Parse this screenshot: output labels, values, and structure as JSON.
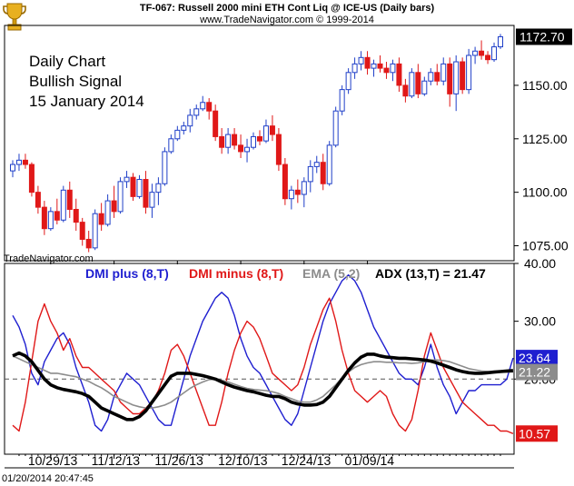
{
  "header": {
    "line1": "TF-067:  Russell 2000 mini ETH Cont Liq @ ICE-US  (Daily bars)",
    "line2": "www.TradeNavigator.com © 1999-2014"
  },
  "annotation": [
    "Daily Chart",
    "Bullish Signal",
    "15 January 2014"
  ],
  "watermark": "TradeNavigator.com",
  "footer_timestamp": "01/20/2014 20:47:45",
  "logo_icon": "trophy-icon",
  "colors": {
    "up_candle": "#1f3fc8",
    "down_candle": "#e01818",
    "dmi_plus": "#1f1fd0",
    "dmi_minus": "#e01818",
    "ema": "#8c8c8c",
    "adx": "#000000"
  },
  "chart_data": [
    {
      "type": "candlestick",
      "y_ticks": [
        "1075.00",
        "1100.00",
        "1125.00",
        "1150.00"
      ],
      "ylim": [
        1068,
        1178
      ],
      "x_ticks": [
        "10/29/13",
        "11/12/13",
        "11/26/13",
        "12/10/13",
        "12/24/13",
        "01/09/14"
      ],
      "last_price_label": "1172.70",
      "candles": [
        [
          1110,
          1115,
          1107,
          1113
        ],
        [
          1113,
          1118,
          1110,
          1115
        ],
        [
          1115,
          1118,
          1111,
          1113
        ],
        [
          1113,
          1114,
          1098,
          1100
        ],
        [
          1100,
          1103,
          1090,
          1093
        ],
        [
          1093,
          1096,
          1080,
          1083
        ],
        [
          1083,
          1093,
          1082,
          1091
        ],
        [
          1091,
          1097,
          1085,
          1087
        ],
        [
          1087,
          1103,
          1086,
          1101
        ],
        [
          1101,
          1105,
          1088,
          1092
        ],
        [
          1092,
          1097,
          1082,
          1086
        ],
        [
          1086,
          1088,
          1075,
          1078
        ],
        [
          1078,
          1082,
          1072,
          1074
        ],
        [
          1074,
          1092,
          1073,
          1090
        ],
        [
          1090,
          1095,
          1082,
          1085
        ],
        [
          1085,
          1099,
          1084,
          1096
        ],
        [
          1096,
          1103,
          1088,
          1091
        ],
        [
          1091,
          1107,
          1090,
          1105
        ],
        [
          1105,
          1110,
          1102,
          1107
        ],
        [
          1107,
          1109,
          1096,
          1098
        ],
        [
          1098,
          1108,
          1097,
          1106
        ],
        [
          1106,
          1110,
          1090,
          1093
        ],
        [
          1093,
          1104,
          1088,
          1100
        ],
        [
          1100,
          1107,
          1094,
          1104
        ],
        [
          1104,
          1121,
          1103,
          1119
        ],
        [
          1119,
          1127,
          1118,
          1125
        ],
        [
          1125,
          1131,
          1124,
          1129
        ],
        [
          1129,
          1133,
          1127,
          1131
        ],
        [
          1131,
          1139,
          1128,
          1136
        ],
        [
          1136,
          1141,
          1134,
          1139
        ],
        [
          1139,
          1145,
          1138,
          1142
        ],
        [
          1142,
          1144,
          1134,
          1138
        ],
        [
          1138,
          1141,
          1124,
          1126
        ],
        [
          1126,
          1130,
          1118,
          1121
        ],
        [
          1121,
          1130,
          1118,
          1127
        ],
        [
          1127,
          1130,
          1120,
          1122
        ],
        [
          1122,
          1127,
          1116,
          1119
        ],
        [
          1119,
          1125,
          1114,
          1121
        ],
        [
          1121,
          1128,
          1120,
          1126
        ],
        [
          1126,
          1129,
          1122,
          1124
        ],
        [
          1124,
          1134,
          1123,
          1131
        ],
        [
          1131,
          1136,
          1124,
          1127
        ],
        [
          1127,
          1130,
          1110,
          1113
        ],
        [
          1113,
          1116,
          1094,
          1097
        ],
        [
          1097,
          1103,
          1092,
          1101
        ],
        [
          1101,
          1106,
          1095,
          1099
        ],
        [
          1099,
          1107,
          1093,
          1105
        ],
        [
          1105,
          1115,
          1100,
          1112
        ],
        [
          1112,
          1117,
          1109,
          1114
        ],
        [
          1114,
          1118,
          1101,
          1104
        ],
        [
          1104,
          1124,
          1103,
          1122
        ],
        [
          1122,
          1140,
          1121,
          1138
        ],
        [
          1138,
          1150,
          1136,
          1148
        ],
        [
          1148,
          1158,
          1146,
          1156
        ],
        [
          1156,
          1163,
          1153,
          1160
        ],
        [
          1160,
          1166,
          1157,
          1163
        ],
        [
          1163,
          1166,
          1155,
          1158
        ],
        [
          1158,
          1162,
          1154,
          1160
        ],
        [
          1160,
          1164,
          1156,
          1158
        ],
        [
          1158,
          1161,
          1153,
          1156
        ],
        [
          1156,
          1162,
          1152,
          1160
        ],
        [
          1160,
          1163,
          1147,
          1150
        ],
        [
          1150,
          1153,
          1142,
          1145
        ],
        [
          1145,
          1158,
          1144,
          1156
        ],
        [
          1156,
          1160,
          1144,
          1146
        ],
        [
          1146,
          1154,
          1145,
          1152
        ],
        [
          1152,
          1158,
          1150,
          1156
        ],
        [
          1156,
          1160,
          1150,
          1152
        ],
        [
          1152,
          1163,
          1150,
          1160
        ],
        [
          1160,
          1163,
          1140,
          1146
        ],
        [
          1146,
          1164,
          1138,
          1161
        ],
        [
          1161,
          1163,
          1146,
          1148
        ],
        [
          1148,
          1167,
          1146,
          1164
        ],
        [
          1164,
          1168,
          1160,
          1166
        ],
        [
          1166,
          1171,
          1162,
          1164
        ],
        [
          1164,
          1166,
          1160,
          1162
        ],
        [
          1162,
          1170,
          1161,
          1168
        ],
        [
          1168,
          1174,
          1167,
          1172.7
        ]
      ]
    },
    {
      "type": "line",
      "y_ticks": [
        "20.00",
        "30.00",
        "40.00"
      ],
      "ylim": [
        7,
        40
      ],
      "reference_line": 20,
      "legend": [
        {
          "text": "DMI plus (8,T)",
          "key": "dmi_plus"
        },
        {
          "text": "DMI minus (8,T)",
          "key": "dmi_minus"
        },
        {
          "text": "EMA (5,2)",
          "key": "ema"
        },
        {
          "text": "ADX (13,T) = 21.47",
          "key": "adx"
        }
      ],
      "value_labels": [
        {
          "text": "23.64",
          "value": 23.64,
          "key": "dmi_plus"
        },
        {
          "text": "21.22",
          "value": 21.22,
          "key": "ema"
        },
        {
          "text": "10.57",
          "value": 10.57,
          "key": "dmi_minus"
        }
      ],
      "series": [
        {
          "key": "dmi_plus",
          "values": [
            31,
            29,
            26,
            21,
            19,
            23,
            25,
            27,
            28,
            26,
            22,
            19,
            16,
            12,
            11,
            13,
            17,
            19,
            21,
            20,
            19,
            17,
            15,
            13,
            12,
            12,
            16,
            20,
            24,
            27,
            30,
            32,
            34,
            35,
            34,
            31,
            27,
            24,
            22,
            21,
            19,
            17,
            15,
            13,
            12,
            14,
            18,
            22,
            26,
            30,
            33,
            35,
            37,
            38,
            37,
            35,
            32,
            29,
            27,
            25,
            23,
            21,
            20,
            20,
            19,
            22,
            26,
            22,
            19,
            17,
            14,
            16,
            18,
            18,
            19,
            19,
            19,
            19,
            20,
            23.64
          ]
        },
        {
          "key": "dmi_minus",
          "values": [
            12,
            11,
            16,
            23,
            30,
            33,
            30,
            28,
            25,
            27,
            24,
            22,
            22,
            21,
            20,
            19,
            18,
            16,
            15,
            14,
            14,
            15,
            16,
            18,
            21,
            25,
            26,
            24,
            21,
            18,
            15,
            12,
            12,
            16,
            21,
            25,
            28,
            30,
            29,
            27,
            24,
            21,
            20,
            19,
            18,
            19,
            22,
            26,
            29,
            32,
            34,
            30,
            25,
            21,
            18,
            17,
            16,
            17,
            18,
            17,
            14,
            12,
            11,
            13,
            18,
            24,
            28,
            25,
            22,
            20,
            18,
            16,
            15,
            14,
            13,
            12,
            12,
            11,
            11,
            10.57
          ]
        },
        {
          "key": "ema",
          "values": [
            24,
            23.5,
            23,
            22.5,
            22,
            21.5,
            21,
            21,
            20.8,
            20.6,
            20.4,
            20,
            19.6,
            19,
            18.5,
            17.8,
            17,
            16.5,
            16,
            15.5,
            15.2,
            15,
            15,
            15.2,
            15.5,
            16,
            16.8,
            17.6,
            18.4,
            19,
            19.5,
            19.9,
            20,
            19.8,
            19.5,
            19.1,
            18.7,
            18.4,
            18.2,
            18.1,
            18,
            17.8,
            17.5,
            17,
            16.6,
            16.2,
            16,
            16,
            16.4,
            17,
            18,
            19,
            20.2,
            21.2,
            22,
            22.5,
            22.8,
            23,
            23,
            22.9,
            22.9,
            22.8,
            22.8,
            22.7,
            22.8,
            23,
            23.3,
            23.3,
            23.2,
            23,
            22.6,
            22.2,
            21.8,
            21.6,
            21.4,
            21.3,
            21.2,
            21.2,
            21.2,
            21.22
          ]
        },
        {
          "key": "adx",
          "values": [
            24,
            24.5,
            24,
            23,
            21.5,
            20,
            19,
            18.5,
            18.2,
            18,
            17.8,
            17.5,
            17,
            16,
            15,
            14.5,
            14,
            13.5,
            13,
            13,
            13.5,
            14.5,
            16,
            17.5,
            19,
            20.5,
            21,
            21,
            21,
            20.8,
            20.6,
            20.3,
            20,
            19.5,
            19,
            18.6,
            18.3,
            18,
            17.8,
            17.5,
            17.2,
            17,
            17,
            16.6,
            16,
            15.7,
            15.5,
            15.5,
            15.6,
            16,
            17,
            18.5,
            20,
            21.5,
            22.8,
            23.8,
            24.3,
            24.3,
            24,
            23.8,
            23.7,
            23.6,
            23.6,
            23.5,
            23.4,
            23.3,
            23.1,
            22.8,
            22.4,
            22,
            21.6,
            21.3,
            21.1,
            21,
            21,
            21.1,
            21.2,
            21.3,
            21.4,
            21.47
          ]
        }
      ]
    }
  ]
}
